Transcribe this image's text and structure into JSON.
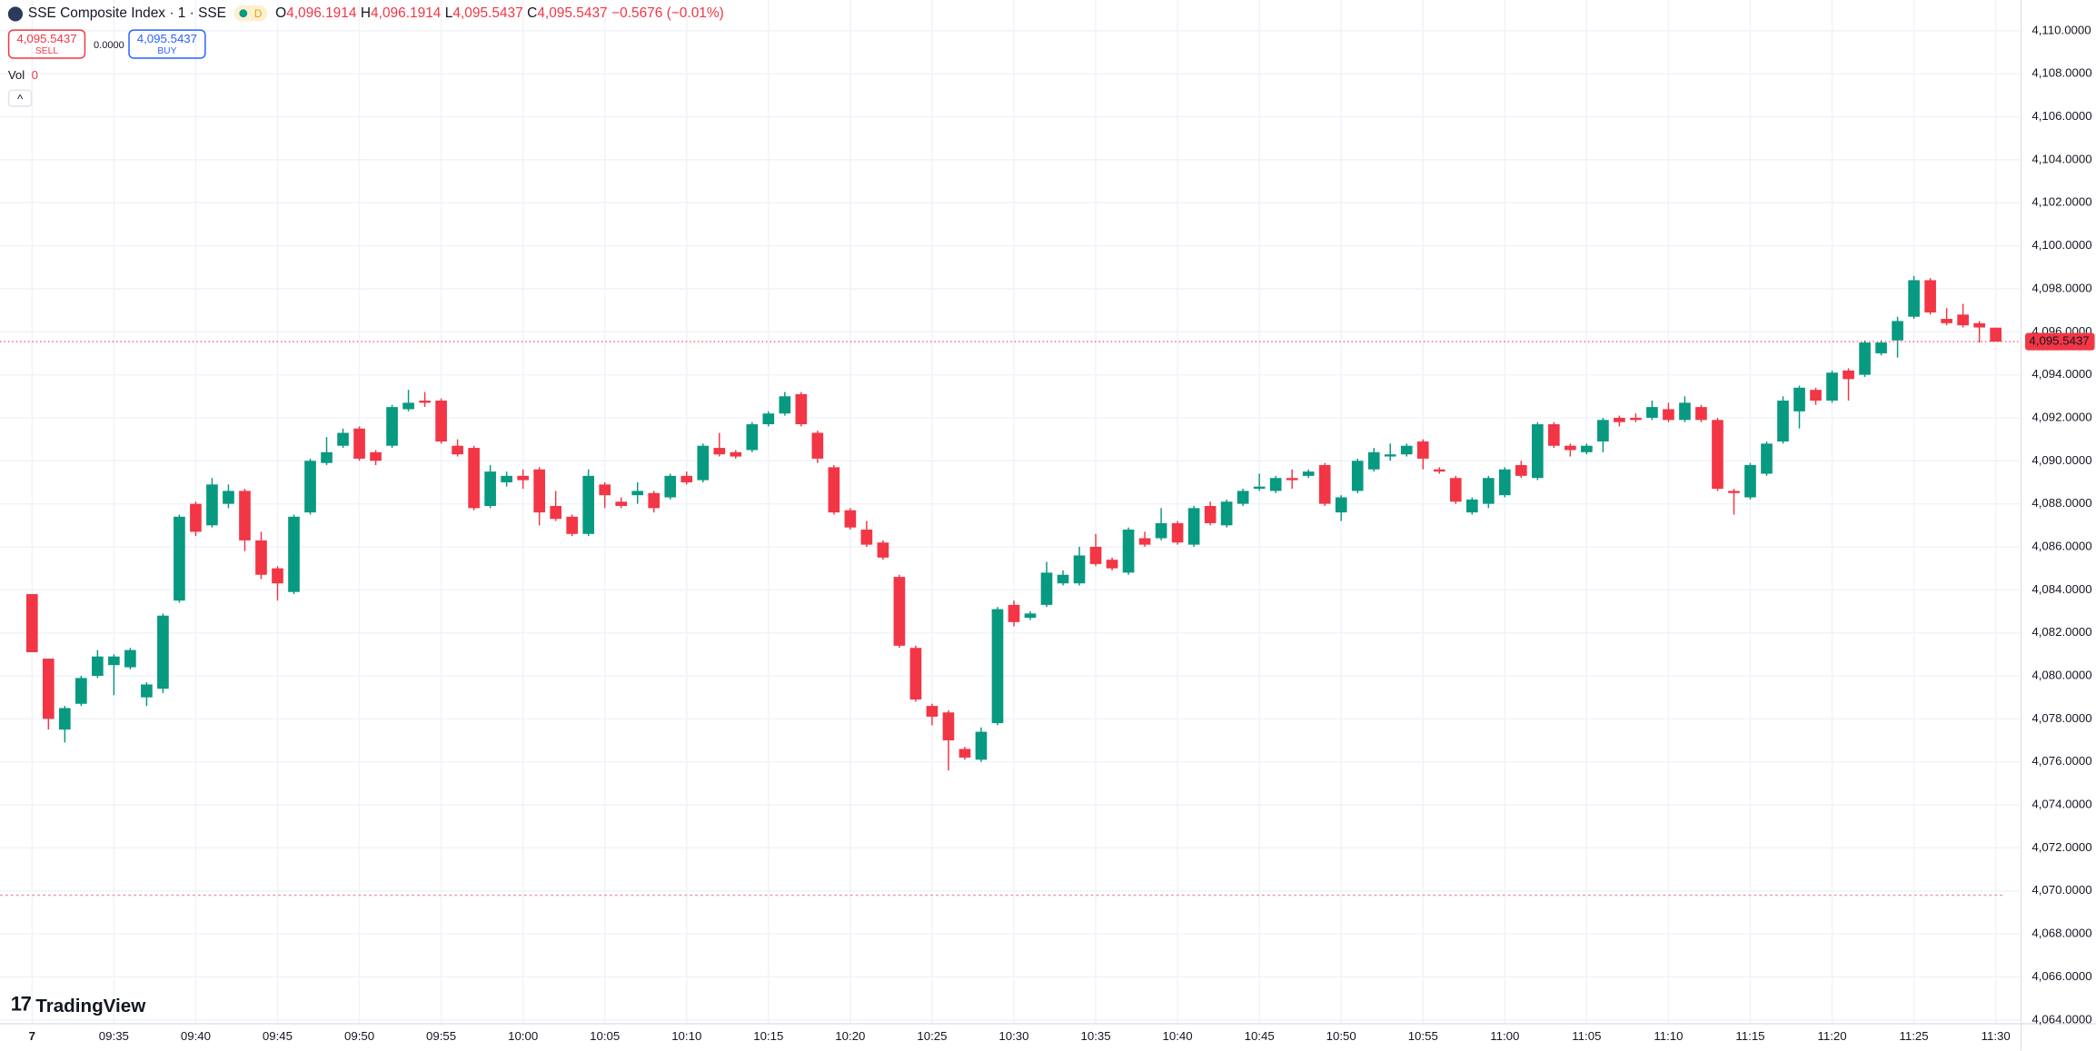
{
  "header": {
    "symbol": "SSE Composite Index · 1 · SSE",
    "badge": "D",
    "ohlc": [
      {
        "key": "O",
        "value": "4,096.1914"
      },
      {
        "key": "H",
        "value": "4,096.1914"
      },
      {
        "key": "L",
        "value": "4,095.5437"
      },
      {
        "key": "C",
        "value": "4,095.5437"
      }
    ],
    "change": "−0.5676 (−0.01%)",
    "sell": {
      "price": "4,095.5437",
      "label": "SELL"
    },
    "spread": "0.0000",
    "buy": {
      "price": "4,095.5437",
      "label": "BUY"
    },
    "volume": {
      "label": "Vol",
      "value": "0"
    }
  },
  "brand": "TradingView",
  "chart_data": {
    "type": "candlestick",
    "categories": [
      "7",
      null,
      null,
      null,
      null,
      "09:35",
      null,
      null,
      null,
      null,
      "09:40",
      null,
      null,
      null,
      null,
      "09:45",
      null,
      null,
      null,
      null,
      "09:50",
      null,
      null,
      null,
      null,
      "09:55",
      null,
      null,
      null,
      null,
      "10:00",
      null,
      null,
      null,
      null,
      "10:05",
      null,
      null,
      null,
      null,
      "10:10",
      null,
      null,
      null,
      null,
      "10:15",
      null,
      null,
      null,
      null,
      "10:20",
      null,
      null,
      null,
      null,
      "10:25",
      null,
      null,
      null,
      null,
      "10:30",
      null,
      null,
      null,
      null,
      "10:35",
      null,
      null,
      null,
      null,
      "10:40",
      null,
      null,
      null,
      null,
      "10:45",
      null,
      null,
      null,
      null,
      "10:50",
      null,
      null,
      null,
      null,
      "10:55",
      null,
      null,
      null,
      null,
      "11:00",
      null,
      null,
      null,
      null,
      "11:05",
      null,
      null,
      null,
      null,
      "11:10",
      null,
      null,
      null,
      null,
      "11:15",
      null,
      null,
      null,
      null,
      "11:20",
      null,
      null,
      null,
      null,
      "11:25",
      null,
      null,
      null,
      null,
      "11:30"
    ],
    "open": [
      4083.8,
      4080.8,
      4077.5,
      4078.7,
      4080.0,
      4080.5,
      4080.4,
      4079.0,
      4079.4,
      4083.5,
      4088.0,
      4087.0,
      4088.0,
      4088.6,
      4086.3,
      4085.0,
      4083.9,
      4087.6,
      4089.9,
      4090.7,
      4091.5,
      4090.4,
      4090.7,
      4092.4,
      4092.8,
      4092.8,
      4090.7,
      4090.6,
      4087.9,
      4089.0,
      4089.3,
      4089.6,
      4087.9,
      4087.4,
      4086.6,
      4088.9,
      4088.1,
      4088.4,
      4088.5,
      4088.3,
      4089.3,
      4089.1,
      4090.6,
      4090.4,
      4090.5,
      4091.7,
      4092.2,
      4093.1,
      4091.3,
      4089.7,
      4087.7,
      4086.8,
      4086.2,
      4084.6,
      4081.3,
      4078.6,
      4078.3,
      4076.6,
      4076.1,
      4077.8,
      4083.3,
      4082.7,
      4083.3,
      4084.3,
      4084.3,
      4086.0,
      4085.4,
      4084.8,
      4086.4,
      4086.4,
      4087.1,
      4086.1,
      4087.9,
      4087.0,
      4088.0,
      4088.7,
      4088.6,
      4089.2,
      4089.3,
      4089.8,
      4087.6,
      4088.6,
      4089.6,
      4090.2,
      4090.3,
      4090.9,
      4089.6,
      4089.2,
      4087.6,
      4088.0,
      4088.4,
      4089.8,
      4089.2,
      4091.7,
      4090.7,
      4090.4,
      4090.9,
      4092.0,
      4092.0,
      4092.0,
      4092.4,
      4091.9,
      4092.5,
      4091.9,
      4088.6,
      4088.3,
      4089.4,
      4090.9,
      4092.3,
      4093.3,
      4092.8,
      4094.2,
      4094.0,
      4095.0,
      4095.6,
      4096.7,
      4098.4,
      4096.6,
      4096.8,
      4096.4,
      4096.1914
    ],
    "high": [
      4083.8,
      4080.8,
      4078.6,
      4080.0,
      4081.2,
      4081.0,
      4081.3,
      4079.7,
      4082.9,
      4087.5,
      4088.1,
      4089.2,
      4088.9,
      4088.7,
      4086.7,
      4085.1,
      4087.5,
      4090.1,
      4091.1,
      4091.5,
      4091.6,
      4090.5,
      4092.6,
      4093.3,
      4093.2,
      4092.9,
      4091.0,
      4090.7,
      4089.8,
      4089.5,
      4089.6,
      4089.7,
      4088.6,
      4087.5,
      4089.6,
      4089.0,
      4088.3,
      4089.0,
      4088.6,
      4089.4,
      4089.5,
      4090.8,
      4091.3,
      4090.5,
      4091.8,
      4092.3,
      4093.2,
      4093.2,
      4091.4,
      4089.8,
      4087.8,
      4087.2,
      4086.3,
      4084.7,
      4081.4,
      4078.7,
      4078.4,
      4076.7,
      4077.6,
      4083.2,
      4083.5,
      4083.0,
      4085.3,
      4084.9,
      4086.0,
      4086.6,
      4085.5,
      4086.9,
      4086.7,
      4087.8,
      4087.2,
      4087.9,
      4088.1,
      4088.2,
      4088.7,
      4089.4,
      4089.3,
      4089.6,
      4089.6,
      4089.9,
      4088.4,
      4090.1,
      4090.6,
      4090.8,
      4090.8,
      4091.0,
      4089.7,
      4089.3,
      4088.3,
      4089.3,
      4089.7,
      4090.0,
      4091.8,
      4091.8,
      4090.8,
      4090.8,
      4092.0,
      4092.1,
      4092.2,
      4092.8,
      4092.7,
      4093.0,
      4092.6,
      4092.0,
      4088.7,
      4089.9,
      4090.9,
      4093.0,
      4093.5,
      4093.4,
      4094.2,
      4094.3,
      4095.6,
      4095.6,
      4096.7,
      4098.6,
      4098.5,
      4097.1,
      4097.3,
      4096.5,
      4096.1914
    ],
    "low": [
      4081.1,
      4077.5,
      4076.9,
      4078.6,
      4079.9,
      4079.1,
      4080.3,
      4078.6,
      4079.2,
      4083.4,
      4086.5,
      4086.9,
      4087.8,
      4085.8,
      4084.5,
      4083.5,
      4083.8,
      4087.5,
      4089.8,
      4090.6,
      4090.0,
      4089.8,
      4090.6,
      4092.3,
      4092.5,
      4090.8,
      4090.2,
      4087.7,
      4087.8,
      4088.8,
      4088.7,
      4087.0,
      4087.2,
      4086.5,
      4086.5,
      4087.8,
      4087.8,
      4088.0,
      4087.6,
      4088.2,
      4088.9,
      4089.0,
      4090.2,
      4090.1,
      4090.4,
      4091.6,
      4092.1,
      4091.6,
      4089.9,
      4087.5,
      4086.8,
      4086.0,
      4085.4,
      4081.3,
      4078.8,
      4077.7,
      4075.6,
      4076.1,
      4076.0,
      4077.7,
      4082.3,
      4082.6,
      4083.2,
      4084.2,
      4084.2,
      4085.1,
      4084.9,
      4084.7,
      4086.0,
      4086.3,
      4086.1,
      4086.0,
      4087.0,
      4086.9,
      4087.9,
      4088.6,
      4088.5,
      4088.7,
      4089.2,
      4087.9,
      4087.2,
      4088.5,
      4089.5,
      4090.0,
      4090.2,
      4089.6,
      4089.4,
      4088.0,
      4087.5,
      4087.8,
      4088.3,
      4089.2,
      4089.1,
      4090.6,
      4090.2,
      4090.3,
      4090.4,
      4091.6,
      4091.8,
      4091.9,
      4091.8,
      4091.8,
      4091.8,
      4088.6,
      4087.5,
      4088.2,
      4089.3,
      4090.8,
      4091.5,
      4092.6,
      4092.7,
      4092.8,
      4093.9,
      4094.9,
      4094.8,
      4096.6,
      4096.8,
      4096.3,
      4096.2,
      4095.5,
      4095.5437
    ],
    "close": [
      4081.1,
      4078.0,
      4078.5,
      4079.9,
      4080.9,
      4080.9,
      4081.2,
      4079.6,
      4082.8,
      4087.4,
      4086.7,
      4088.9,
      4088.6,
      4086.3,
      4084.7,
      4084.3,
      4087.4,
      4090.0,
      4090.4,
      4091.3,
      4090.1,
      4090.0,
      4092.5,
      4092.7,
      4092.7,
      4090.9,
      4090.3,
      4087.8,
      4089.5,
      4089.3,
      4089.1,
      4087.6,
      4087.3,
      4086.6,
      4089.3,
      4088.4,
      4087.9,
      4088.6,
      4087.8,
      4089.3,
      4089.0,
      4090.7,
      4090.3,
      4090.2,
      4091.7,
      4092.2,
      4093.0,
      4091.7,
      4090.1,
      4087.6,
      4086.9,
      4086.1,
      4085.5,
      4081.4,
      4078.9,
      4078.1,
      4077.0,
      4076.2,
      4077.4,
      4083.1,
      4082.5,
      4082.9,
      4084.8,
      4084.7,
      4085.6,
      4085.2,
      4085.0,
      4086.8,
      4086.1,
      4087.1,
      4086.2,
      4087.8,
      4087.1,
      4088.1,
      4088.6,
      4088.8,
      4089.2,
      4089.1,
      4089.5,
      4088.0,
      4088.3,
      4090.0,
      4090.4,
      4090.3,
      4090.7,
      4090.1,
      4089.5,
      4088.1,
      4088.2,
      4089.2,
      4089.6,
      4089.3,
      4091.7,
      4090.7,
      4090.5,
      4090.7,
      4091.9,
      4091.8,
      4091.9,
      4092.5,
      4091.9,
      4092.7,
      4091.9,
      4088.7,
      4088.5,
      4089.8,
      4090.8,
      4092.8,
      4093.4,
      4092.8,
      4094.1,
      4093.8,
      4095.5,
      4095.5,
      4096.5,
      4098.4,
      4096.9,
      4096.4,
      4096.3,
      4096.2,
      4095.5437
    ],
    "up_color": "#089981",
    "down_color": "#f23645",
    "ylim": [
      4063.82,
      4111.43
    ],
    "yticks": [
      {
        "value": 4064,
        "label": "4,064.0000"
      },
      {
        "value": 4066,
        "label": "4,066.0000"
      },
      {
        "value": 4068,
        "label": "4,068.0000"
      },
      {
        "value": 4070,
        "label": "4,070.0000"
      },
      {
        "value": 4072,
        "label": "4,072.0000"
      },
      {
        "value": 4074,
        "label": "4,074.0000"
      },
      {
        "value": 4076,
        "label": "4,076.0000"
      },
      {
        "value": 4078,
        "label": "4,078.0000"
      },
      {
        "value": 4080,
        "label": "4,080.0000"
      },
      {
        "value": 4082,
        "label": "4,082.0000"
      },
      {
        "value": 4084,
        "label": "4,084.0000"
      },
      {
        "value": 4086,
        "label": "4,086.0000"
      },
      {
        "value": 4088,
        "label": "4,088.0000"
      },
      {
        "value": 4090,
        "label": "4,090.0000"
      },
      {
        "value": 4092,
        "label": "4,092.0000"
      },
      {
        "value": 4094,
        "label": "4,094.0000"
      },
      {
        "value": 4096,
        "label": "4,096.0000"
      },
      {
        "value": 4098,
        "label": "4,098.0000"
      },
      {
        "value": 4100,
        "label": "4,100.0000"
      },
      {
        "value": 4102,
        "label": "4,102.0000"
      },
      {
        "value": 4104,
        "label": "4,104.0000"
      },
      {
        "value": 4106,
        "label": "4,106.0000"
      },
      {
        "value": 4108,
        "label": "4,108.0000"
      },
      {
        "value": 4110,
        "label": "4,110.0000"
      }
    ],
    "last_price": {
      "value": 4095.5437,
      "label": "4,095.5437"
    },
    "reference_line": 4069.8,
    "grid": true
  }
}
